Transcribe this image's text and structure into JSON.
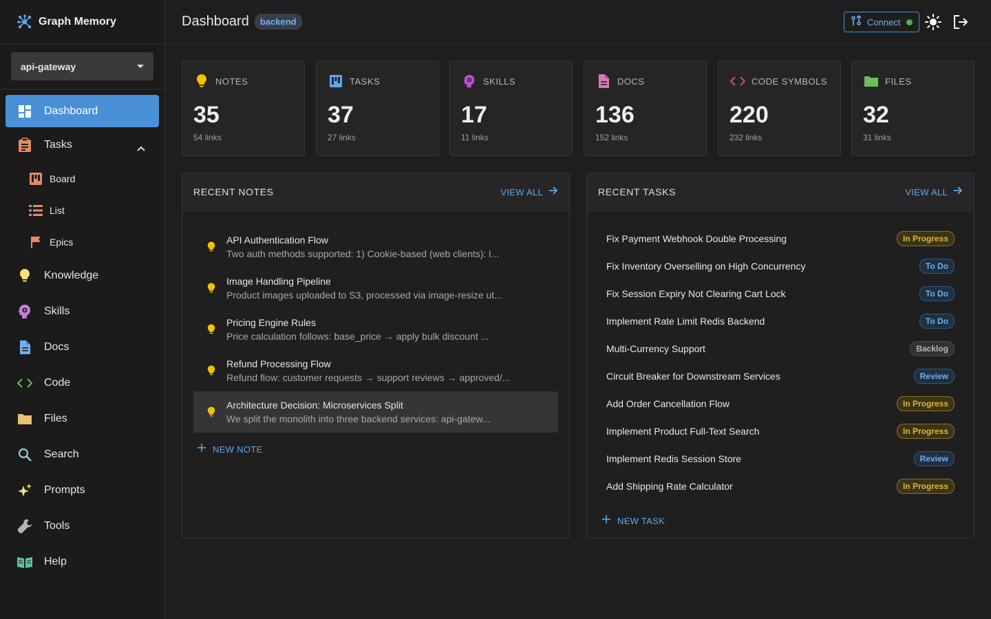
{
  "app": {
    "name": "Graph Memory"
  },
  "project": {
    "selected": "api-gateway"
  },
  "nav": {
    "dashboard": "Dashboard",
    "tasks": "Tasks",
    "board": "Board",
    "list": "List",
    "epics": "Epics",
    "knowledge": "Knowledge",
    "skills": "Skills",
    "docs": "Docs",
    "code": "Code",
    "files": "Files",
    "search": "Search",
    "prompts": "Prompts",
    "tools": "Tools",
    "help": "Help"
  },
  "header": {
    "title": "Dashboard",
    "badge": "backend",
    "connect_label": "Connect",
    "connect_status_color": "#4caf50"
  },
  "stats": [
    {
      "label": "NOTES",
      "count": "35",
      "links": "54 links",
      "icon": "lightbulb-icon",
      "color": "#f2c200"
    },
    {
      "label": "TASKS",
      "count": "37",
      "links": "27 links",
      "icon": "board-icon",
      "color": "#5ea8ee"
    },
    {
      "label": "SKILLS",
      "count": "17",
      "links": "11 links",
      "icon": "head-gear-icon",
      "color": "#c04fd8"
    },
    {
      "label": "DOCS",
      "count": "136",
      "links": "152 links",
      "icon": "document-icon",
      "color": "#d87ab8"
    },
    {
      "label": "CODE SYMBOLS",
      "count": "220",
      "links": "232 links",
      "icon": "code-icon",
      "color": "#e05050"
    },
    {
      "label": "FILES",
      "count": "32",
      "links": "31 links",
      "icon": "folder-icon",
      "color": "#6bbf59"
    }
  ],
  "recent_notes": {
    "title": "RECENT NOTES",
    "view_all": "VIEW ALL",
    "new_label": "NEW NOTE",
    "items": [
      {
        "title": "API Authentication Flow",
        "preview": "Two auth methods supported: 1) Cookie-based (web clients): l..."
      },
      {
        "title": "Image Handling Pipeline",
        "preview": "Product images uploaded to S3, processed via image-resize ut..."
      },
      {
        "title": "Pricing Engine Rules",
        "preview": "Price calculation follows: base_price → apply bulk discount ..."
      },
      {
        "title": "Refund Processing Flow",
        "preview": "Refund flow: customer requests → support reviews → approved/..."
      },
      {
        "title": "Architecture Decision: Microservices Split",
        "preview": "We split the monolith into three backend services: api-gatew..."
      }
    ]
  },
  "recent_tasks": {
    "title": "RECENT TASKS",
    "view_all": "VIEW ALL",
    "new_label": "NEW TASK",
    "items": [
      {
        "title": "Fix Payment Webhook Double Processing",
        "status": "In Progress"
      },
      {
        "title": "Fix Inventory Overselling on High Concurrency",
        "status": "To Do"
      },
      {
        "title": "Fix Session Expiry Not Clearing Cart Lock",
        "status": "To Do"
      },
      {
        "title": "Implement Rate Limit Redis Backend",
        "status": "To Do"
      },
      {
        "title": "Multi-Currency Support",
        "status": "Backlog"
      },
      {
        "title": "Circuit Breaker for Downstream Services",
        "status": "Review"
      },
      {
        "title": "Add Order Cancellation Flow",
        "status": "In Progress"
      },
      {
        "title": "Implement Product Full-Text Search",
        "status": "In Progress"
      },
      {
        "title": "Implement Redis Session Store",
        "status": "Review"
      },
      {
        "title": "Add Shipping Rate Calculator",
        "status": "In Progress"
      }
    ]
  },
  "status_colors": {
    "In Progress": {
      "fg": "#e0b530",
      "bg": "#3b3418",
      "border": "#8a7420"
    },
    "To Do": {
      "fg": "#6fb1f0",
      "bg": "#1f3040",
      "border": "#2f5a82"
    },
    "Backlog": {
      "fg": "#b5b5b5",
      "bg": "#333333",
      "border": "#4a4a4a"
    },
    "Review": {
      "fg": "#6fb1f0",
      "bg": "#1f3040",
      "border": "#2f5a82"
    }
  }
}
